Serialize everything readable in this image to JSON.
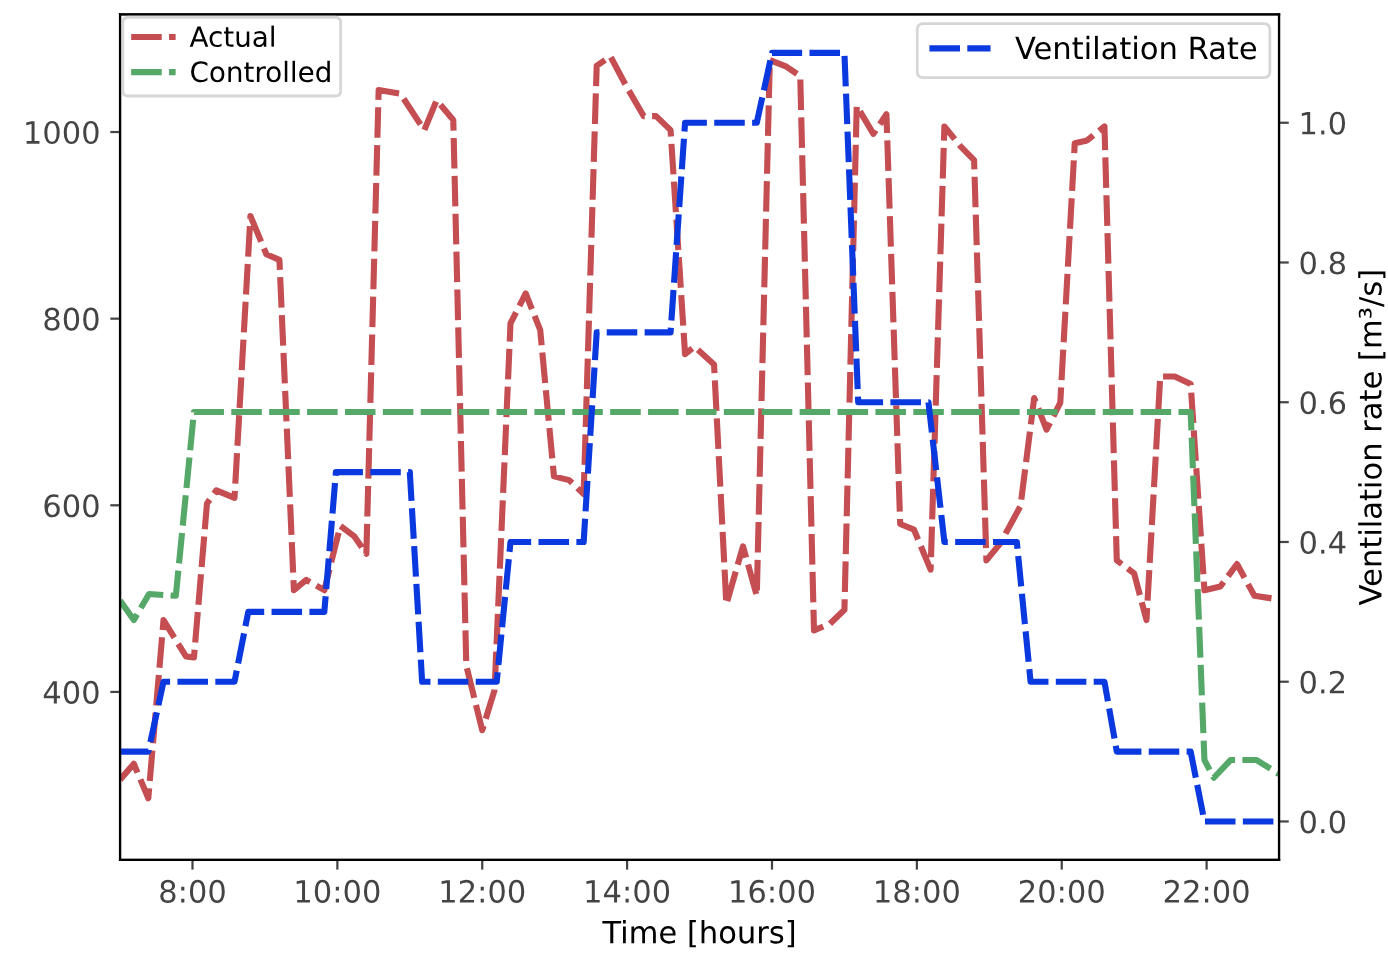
{
  "chart_data": {
    "type": "line",
    "xlabel": "Time [hours]",
    "y2label": "Ventilation rate [m³/s]",
    "xlim": [
      7,
      23
    ],
    "xticks": [
      {
        "value": 8,
        "label": "8:00"
      },
      {
        "value": 10,
        "label": "10:00"
      },
      {
        "value": 12,
        "label": "12:00"
      },
      {
        "value": 14,
        "label": "14:00"
      },
      {
        "value": 16,
        "label": "16:00"
      },
      {
        "value": 18,
        "label": "18:00"
      },
      {
        "value": 20,
        "label": "20:00"
      },
      {
        "value": 22,
        "label": "22:00"
      }
    ],
    "ylim": [
      220,
      1126
    ],
    "yticks": [
      400,
      600,
      800,
      1000
    ],
    "y2lim": [
      -0.055,
      1.155
    ],
    "y2ticks": [
      {
        "value": 0,
        "label": "0.0"
      },
      {
        "value": 0.2,
        "label": "0.2"
      },
      {
        "value": 0.4,
        "label": "0.4"
      },
      {
        "value": 0.6,
        "label": "0.6"
      },
      {
        "value": 0.8,
        "label": "0.8"
      },
      {
        "value": 1,
        "label": "1.0"
      }
    ],
    "legend": "top left",
    "line_style": "dashed",
    "grid": false,
    "series": [
      {
        "name": "Actual",
        "color": "#c44e52",
        "x": [
          7.0,
          7.19,
          7.39,
          7.6,
          7.91,
          8.02,
          8.2,
          8.33,
          8.58,
          8.8,
          9.02,
          9.2,
          9.4,
          9.57,
          9.82,
          10.04,
          10.23,
          10.4,
          10.57,
          10.87,
          11.2,
          11.37,
          11.6,
          11.78,
          12.0,
          12.17,
          12.39,
          12.6,
          12.8,
          12.99,
          13.2,
          13.4,
          13.58,
          13.77,
          13.99,
          14.23,
          14.4,
          14.6,
          14.8,
          14.93,
          15.2,
          15.37,
          15.6,
          15.79,
          15.97,
          16.2,
          16.39,
          16.58,
          16.8,
          17.0,
          17.17,
          17.4,
          17.58,
          17.77,
          17.96,
          18.19,
          18.38,
          18.6,
          18.79,
          18.96,
          19.15,
          19.43,
          19.62,
          19.79,
          19.98,
          20.18,
          20.35,
          20.59,
          20.76,
          21.0,
          21.17,
          21.36,
          21.56,
          21.78,
          21.97,
          22.19,
          22.42,
          22.66,
          23.0
        ],
        "values": [
          306,
          323,
          286,
          477,
          438,
          437,
          602,
          616,
          608,
          910,
          869,
          863,
          509,
          520,
          509,
          578,
          567,
          548,
          1045,
          1041,
          1002,
          1034,
          1013,
          428,
          359,
          402,
          795,
          827,
          788,
          631,
          627,
          612,
          1071,
          1081,
          1049,
          1017,
          1017,
          1002,
          762,
          770,
          751,
          494,
          556,
          503,
          1077,
          1070,
          1060,
          466,
          473,
          488,
          1028,
          998,
          1019,
          580,
          574,
          531,
          1006,
          985,
          970,
          541,
          559,
          599,
          715,
          681,
          710,
          988,
          991,
          1006,
          541,
          527,
          477,
          738,
          738,
          730,
          509,
          513,
          537,
          503,
          499
        ]
      },
      {
        "name": "Controlled",
        "color": "#55a868",
        "x": [
          7.0,
          7.19,
          7.4,
          7.77,
          8.02,
          21.78,
          21.97,
          22.1,
          22.33,
          22.69,
          23.0
        ],
        "values": [
          498,
          477,
          505,
          503,
          700,
          700,
          327,
          308,
          327,
          327,
          312
        ]
      },
      {
        "name": "Ventilation Rate",
        "color": "#0a3adf",
        "axis": "y2",
        "x": [
          7.0,
          7.39,
          7.6,
          8.58,
          8.77,
          9.82,
          9.98,
          11.0,
          11.17,
          12.2,
          12.39,
          13.4,
          13.58,
          14.6,
          14.8,
          15.79,
          16.0,
          17.0,
          17.19,
          18.16,
          18.38,
          19.38,
          19.57,
          20.59,
          20.76,
          21.78,
          21.97,
          23.0
        ],
        "values": [
          0.1,
          0.1,
          0.2,
          0.2,
          0.3,
          0.3,
          0.5,
          0.5,
          0.2,
          0.2,
          0.4,
          0.4,
          0.7,
          0.7,
          1.0,
          1.0,
          1.1,
          1.1,
          0.6,
          0.6,
          0.4,
          0.4,
          0.2,
          0.2,
          0.1,
          0.1,
          0.0,
          0.0
        ]
      }
    ]
  }
}
